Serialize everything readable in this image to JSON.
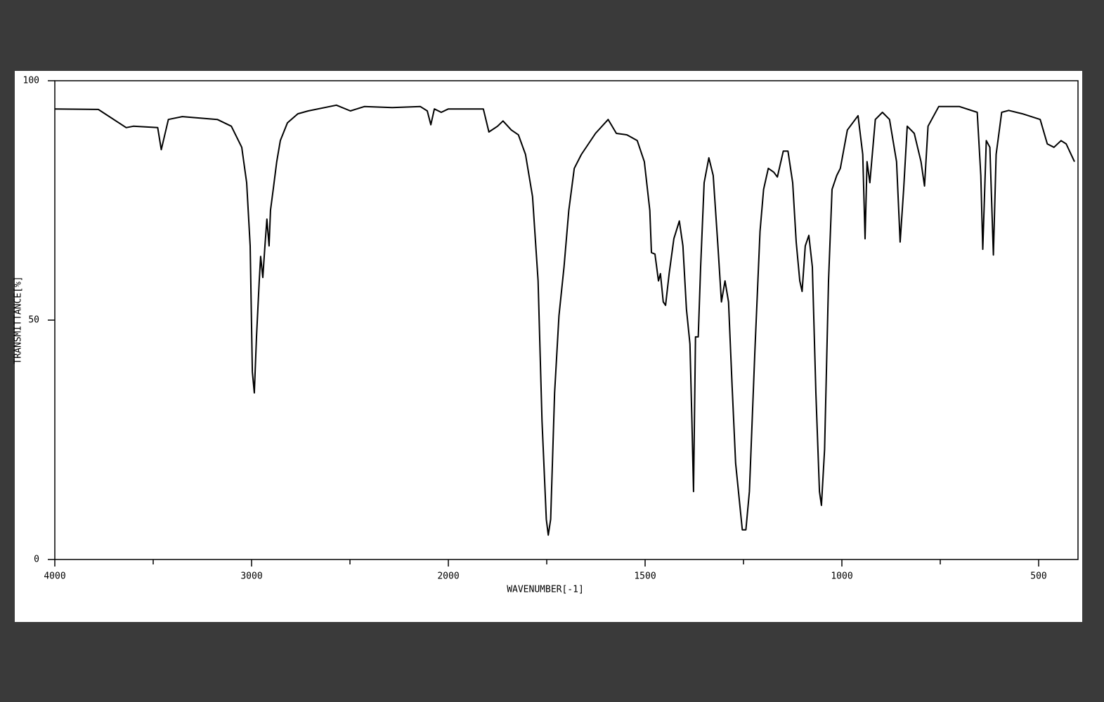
{
  "chart_data": {
    "type": "line",
    "xlabel": "WAVENUMBER[-1]",
    "ylabel": "TRANSMITTANCE[%]",
    "color": "#000000",
    "xlim": [
      4000,
      400
    ],
    "xticks": [
      4000,
      3000,
      2000,
      1500,
      1000,
      500
    ],
    "xminorticks": [
      3500,
      2500,
      1750,
      1250,
      750
    ],
    "ylim": [
      0,
      100
    ],
    "yticks": [
      0,
      50,
      100
    ],
    "x": [
      4000,
      3779,
      3637,
      3601,
      3477,
      3459,
      3423,
      3352,
      3174,
      3103,
      3050,
      3025,
      3007,
      2996,
      2986,
      2975,
      2961,
      2954,
      2943,
      2932,
      2922,
      2911,
      2904,
      2890,
      2872,
      2854,
      2818,
      2765,
      2712,
      2569,
      2498,
      2427,
      2285,
      2142,
      2107,
      2089,
      2071,
      2036,
      2000,
      1911,
      1897,
      1875,
      1861,
      1840,
      1822,
      1804,
      1786,
      1772,
      1762,
      1751,
      1746,
      1740,
      1730,
      1719,
      1706,
      1694,
      1680,
      1662,
      1626,
      1594,
      1573,
      1546,
      1520,
      1502,
      1488,
      1484,
      1475,
      1466,
      1461,
      1454,
      1448,
      1439,
      1427,
      1413,
      1404,
      1395,
      1386,
      1381,
      1377,
      1372,
      1365,
      1359,
      1350,
      1338,
      1327,
      1315,
      1306,
      1297,
      1288,
      1279,
      1270,
      1253,
      1244,
      1235,
      1221,
      1208,
      1199,
      1187,
      1173,
      1164,
      1149,
      1137,
      1125,
      1116,
      1107,
      1101,
      1093,
      1084,
      1075,
      1066,
      1057,
      1052,
      1044,
      1034,
      1025,
      1013,
      1004,
      986,
      959,
      947,
      941,
      936,
      929,
      915,
      897,
      879,
      861,
      852,
      843,
      834,
      816,
      799,
      790,
      781,
      754,
      701,
      656,
      647,
      642,
      633,
      624,
      615,
      608,
      594,
      576,
      541,
      496,
      478,
      461,
      443,
      430,
      409
    ],
    "values": [
      94.1,
      94.0,
      90.2,
      90.5,
      90.2,
      85.6,
      91.9,
      92.5,
      91.9,
      90.5,
      86.1,
      78.7,
      65.5,
      39.2,
      34.8,
      46.5,
      58.2,
      63.3,
      58.9,
      65.5,
      71.1,
      65.5,
      72.9,
      77.3,
      83.1,
      87.5,
      91.2,
      93.1,
      93.7,
      94.9,
      93.7,
      94.6,
      94.4,
      94.6,
      93.7,
      90.8,
      94.1,
      93.4,
      94.1,
      94.1,
      89.3,
      90.5,
      91.6,
      89.7,
      88.7,
      84.6,
      75.8,
      58.2,
      28.9,
      8.4,
      5.1,
      8.4,
      34.8,
      50.9,
      61.1,
      72.9,
      81.7,
      84.6,
      89.0,
      91.9,
      89.0,
      88.7,
      87.5,
      83.1,
      72.9,
      64.1,
      63.8,
      58.2,
      59.7,
      53.8,
      53.1,
      59.7,
      67.0,
      70.7,
      65.5,
      52.3,
      45.0,
      28.9,
      14.2,
      46.5,
      46.5,
      61.1,
      78.7,
      83.9,
      80.2,
      65.5,
      53.8,
      58.2,
      53.8,
      36.2,
      20.1,
      6.2,
      6.2,
      14.2,
      43.5,
      68.5,
      77.3,
      81.7,
      80.9,
      79.9,
      85.3,
      85.3,
      78.7,
      66.3,
      58.2,
      56.0,
      65.5,
      67.7,
      61.1,
      34.8,
      14.2,
      11.3,
      23.0,
      58.2,
      77.3,
      80.2,
      81.7,
      89.7,
      92.7,
      84.6,
      67.0,
      83.1,
      78.7,
      91.9,
      93.4,
      91.9,
      83.1,
      66.3,
      77.3,
      90.5,
      89.0,
      83.1,
      78.0,
      90.5,
      94.6,
      94.6,
      93.4,
      80.2,
      64.8,
      87.5,
      86.1,
      63.6,
      84.6,
      93.4,
      93.8,
      93.1,
      91.9,
      86.8,
      86.1,
      87.5,
      86.8,
      83.1
    ]
  }
}
